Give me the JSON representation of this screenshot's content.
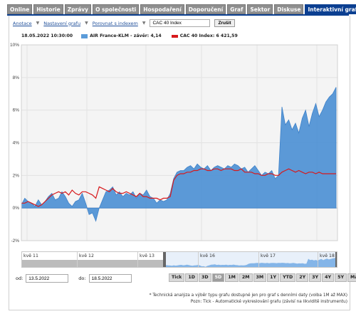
{
  "tabs": [
    "Online",
    "Historie",
    "Zprávy",
    "O společnosti",
    "Hospodaření",
    "Doporučení",
    "Graf",
    "Sektor",
    "Diskuse",
    "Interaktivní graf"
  ],
  "active_tab": "Interaktivní graf",
  "controls": {
    "annotations": "Anotace",
    "settings": "Nastavení grafu",
    "compare": "Porovnat s indexem",
    "index_value": "CAC 40 Index",
    "cancel": "Zrušit"
  },
  "legend": {
    "timestamp": "18.05.2022 10:30:00",
    "s1": "AIR France-KLM - závěr: 4,14",
    "s2": "CAC 40 Index: 6 421,59"
  },
  "navigator": {
    "labels": [
      "kvě 11",
      "kvě 12",
      "kvě 13",
      "kvě 16",
      "kvě 17",
      "kvě 18"
    ]
  },
  "dates": {
    "from_label": "od:",
    "from": "13.5.2022",
    "to_label": "do:",
    "to": "18.5.2022"
  },
  "ranges": [
    "Tick",
    "1D",
    "3D",
    "5D",
    "1M",
    "2M",
    "3M",
    "1Y",
    "YTD",
    "2Y",
    "3Y",
    "4Y",
    "5Y",
    "Max"
  ],
  "active_range": "5D",
  "footnotes": [
    "* Technická analýza a výběr typu grafu dostupné jen pro graf s denními daty (volba 1M až MAX)",
    "Pozn: Tick - Automatické vykreslování grafu (závisí na likviditě instrumentu)"
  ],
  "colors": {
    "s1": "#5b9bd9",
    "s1_fill": "#4a8fd4",
    "s2": "#d7191c",
    "tab": "#0b3f91"
  },
  "chart_data": {
    "type": "area",
    "ylim": [
      -2,
      10
    ],
    "y_ticks": [
      "-2%",
      "0%",
      "2%",
      "4%",
      "6%",
      "8%",
      "10%"
    ],
    "x_labels": [
      "kvě 12",
      "kvě 13",
      "kvě 16",
      "kvě 17",
      "kvě 18"
    ],
    "series": [
      {
        "name": "AIR France-KLM - závěr: 4,14",
        "values": [
          0.2,
          0.6,
          0.4,
          0.3,
          0.1,
          0.5,
          0.2,
          0.4,
          0.7,
          0.9,
          0.5,
          0.6,
          1.0,
          0.7,
          0.3,
          0.1,
          0.4,
          0.5,
          0.9,
          0.3,
          -0.4,
          -0.3,
          -0.8,
          0.0,
          0.5,
          1.0,
          1.1,
          1.3,
          0.8,
          1.0,
          0.7,
          0.9,
          0.8,
          1.0,
          0.6,
          0.9,
          0.8,
          1.1,
          0.7,
          0.6,
          0.3,
          0.5,
          0.4,
          0.5,
          0.9,
          1.8,
          2.2,
          2.3,
          2.3,
          2.5,
          2.6,
          2.4,
          2.7,
          2.5,
          2.4,
          2.6,
          2.3,
          2.5,
          2.6,
          2.5,
          2.4,
          2.6,
          2.5,
          2.7,
          2.6,
          2.4,
          2.5,
          2.2,
          2.4,
          2.6,
          2.3,
          2.0,
          2.2,
          2.1,
          2.3,
          1.8,
          2.0,
          6.2,
          5.1,
          5.4,
          4.8,
          5.2,
          4.6,
          5.5,
          6.0,
          5.0,
          5.8,
          6.4,
          5.6,
          6.0,
          6.5,
          6.8,
          7.0,
          7.4
        ]
      },
      {
        "name": "CAC 40 Index: 6 421,59",
        "values": [
          0.3,
          0.3,
          0.4,
          0.3,
          0.2,
          0.1,
          0.2,
          0.4,
          0.6,
          0.8,
          0.9,
          1.0,
          0.9,
          1.0,
          0.8,
          1.1,
          0.9,
          0.8,
          1.0,
          1.0,
          0.9,
          0.8,
          0.6,
          1.3,
          1.2,
          1.1,
          1.0,
          1.2,
          1.0,
          0.9,
          0.9,
          1.0,
          0.9,
          0.8,
          0.7,
          0.9,
          0.7,
          0.7,
          0.6,
          0.6,
          0.6,
          0.5,
          0.6,
          0.6,
          0.7,
          1.7,
          2.0,
          2.1,
          2.1,
          2.2,
          2.2,
          2.3,
          2.3,
          2.4,
          2.4,
          2.3,
          2.3,
          2.4,
          2.4,
          2.3,
          2.4,
          2.4,
          2.4,
          2.3,
          2.3,
          2.4,
          2.2,
          2.2,
          2.2,
          2.1,
          2.1,
          2.0,
          2.0,
          2.1,
          2.1,
          2.0,
          2.0,
          2.2,
          2.3,
          2.4,
          2.3,
          2.2,
          2.3,
          2.2,
          2.1,
          2.2,
          2.2,
          2.1,
          2.2,
          2.1,
          2.1,
          2.1,
          2.1,
          2.1
        ]
      }
    ]
  }
}
